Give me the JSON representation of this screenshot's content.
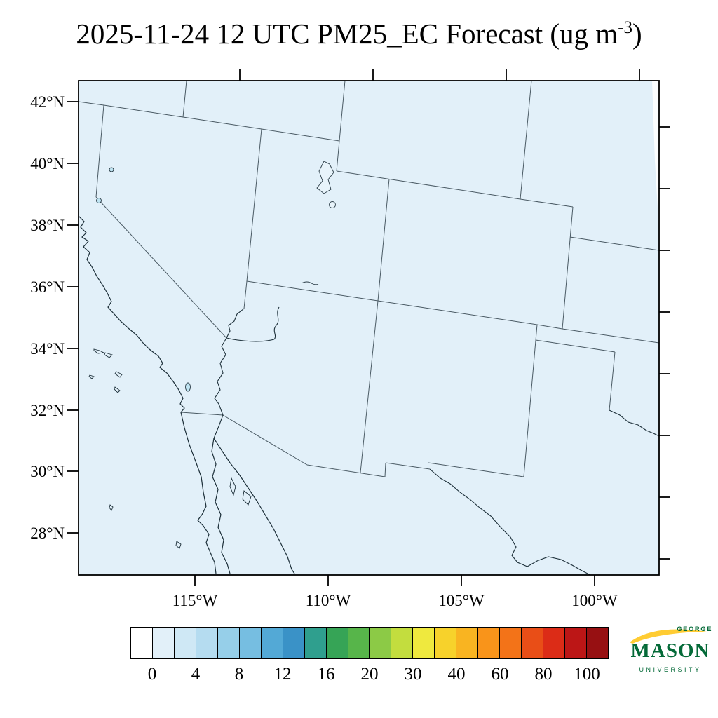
{
  "title": {
    "main": "2025-11-24 12 UTC PM25_EC Forecast (ug m",
    "superscript": "-3",
    "suffix": ")"
  },
  "axes": {
    "lat_labels": [
      "42°N",
      "40°N",
      "38°N",
      "36°N",
      "34°N",
      "32°N",
      "30°N",
      "28°N"
    ],
    "lon_labels": [
      "115°W",
      "110°W",
      "105°W",
      "100°W"
    ]
  },
  "map": {
    "background_fill": "#e2f0f9",
    "state_border_color": "#4a5a64",
    "coast_color": "#1b2e38"
  },
  "colorbar": {
    "tick_labels": [
      "0",
      "4",
      "8",
      "12",
      "16",
      "20",
      "30",
      "40",
      "60",
      "80",
      "100"
    ],
    "colors": [
      "#ffffff",
      "#e2f0f9",
      "#cfe8f5",
      "#b5dcf0",
      "#96cfe9",
      "#76bee1",
      "#53a9d6",
      "#3a92c7",
      "#2f9f8e",
      "#36a456",
      "#57b54a",
      "#8cca46",
      "#c3dd3e",
      "#efe93e",
      "#f7d22b",
      "#f9b421",
      "#f9941a",
      "#f37318",
      "#e94e17",
      "#dc2c17",
      "#bc1616",
      "#971012"
    ]
  },
  "chart_data": {
    "type": "heatmap",
    "title": "2025-11-24 12 UTC PM25_EC Forecast (ug m-3)",
    "units": "ug m-3",
    "colorbar_levels": [
      0,
      2,
      4,
      6,
      8,
      10,
      12,
      14,
      16,
      18,
      20,
      25,
      30,
      35,
      40,
      50,
      60,
      70,
      80,
      90,
      100
    ],
    "labeled_levels": [
      0,
      4,
      8,
      12,
      16,
      20,
      30,
      40,
      60,
      80,
      100
    ],
    "lat_ticks_deg_n": [
      42,
      40,
      38,
      36,
      34,
      32,
      30,
      28
    ],
    "lon_ticks_deg_w": [
      115,
      110,
      105,
      100
    ],
    "field_summary": "near-uniform PM2.5 EC concentrations in the lowest color bin (0-2 ug m-3) over the entire southwestern US domain"
  },
  "logo": {
    "line1": "GEORGE",
    "line2": "MASON",
    "line3": "UNIVERSITY",
    "green": "#046A38",
    "gold": "#FFCC33"
  }
}
